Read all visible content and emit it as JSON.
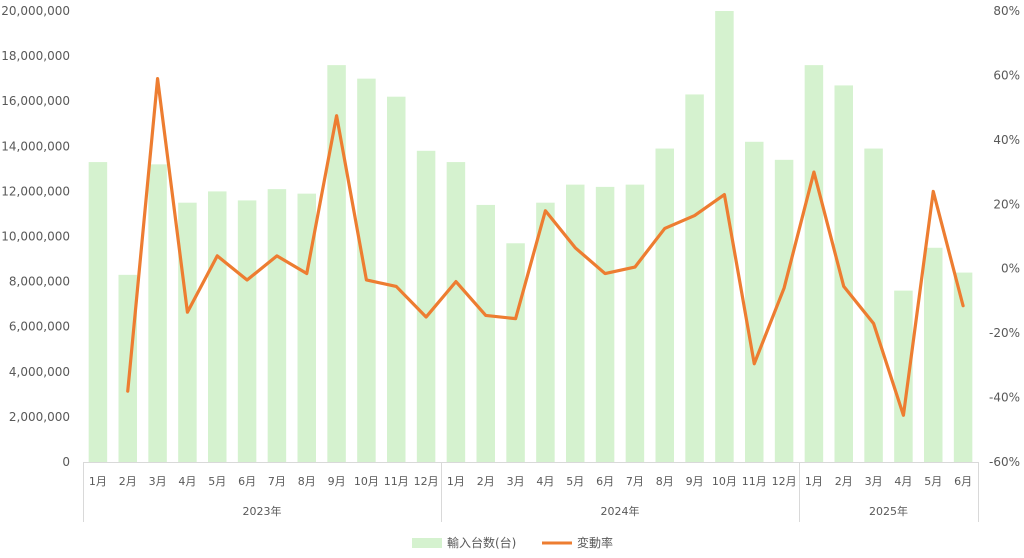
{
  "chart_data": {
    "type": "bar+line",
    "title": "",
    "categories": [
      "1月",
      "2月",
      "3月",
      "4月",
      "5月",
      "6月",
      "7月",
      "8月",
      "9月",
      "10月",
      "11月",
      "12月",
      "1月",
      "2月",
      "3月",
      "4月",
      "5月",
      "6月",
      "7月",
      "8月",
      "9月",
      "10月",
      "11月",
      "12月",
      "1月",
      "2月",
      "3月",
      "4月",
      "5月",
      "6月"
    ],
    "groups": [
      {
        "label": "2023年",
        "count": 12
      },
      {
        "label": "2024年",
        "count": 12
      },
      {
        "label": "2025年",
        "count": 6
      }
    ],
    "series": [
      {
        "name": "輸入台数(台)",
        "type": "bar",
        "axis": "left",
        "color": "#d5f2cf",
        "values": [
          13300000,
          8300000,
          13200000,
          11500000,
          12000000,
          11600000,
          12100000,
          11900000,
          17600000,
          17000000,
          16200000,
          13800000,
          13300000,
          11400000,
          9700000,
          11500000,
          12300000,
          12200000,
          12300000,
          13900000,
          16300000,
          20000000,
          14200000,
          13400000,
          17600000,
          16700000,
          13900000,
          7600000,
          9500000,
          8400000
        ]
      },
      {
        "name": "変動率",
        "type": "line",
        "axis": "right",
        "color": "#ed7d31",
        "values": [
          null,
          -38,
          59,
          -13.5,
          4,
          -3.5,
          4,
          -1.5,
          47.5,
          -3.5,
          -5.5,
          -15,
          -4,
          -14.5,
          -15.5,
          18,
          6.5,
          -1.5,
          0.5,
          12.5,
          16.5,
          23,
          -29.5,
          -6,
          30,
          -5.5,
          -17,
          -45.5,
          24,
          -11.5
        ]
      }
    ],
    "y_left": {
      "min": 0,
      "max": 20000000,
      "ticks": [
        "0",
        "2,000,000",
        "4,000,000",
        "6,000,000",
        "8,000,000",
        "10,000,000",
        "12,000,000",
        "14,000,000",
        "16,000,000",
        "18,000,000",
        "20,000,000"
      ]
    },
    "y_right": {
      "min": -60,
      "max": 80,
      "ticks": [
        "-60%",
        "-40%",
        "-20%",
        "0%",
        "20%",
        "40%",
        "60%",
        "80%"
      ]
    },
    "legend": {
      "position": "bottom",
      "items": [
        {
          "label": "輸入台数(台)",
          "color": "#d5f2cf",
          "marker": "rect"
        },
        {
          "label": "変動率",
          "color": "#ed7d31",
          "marker": "line"
        }
      ]
    },
    "grid": false
  }
}
